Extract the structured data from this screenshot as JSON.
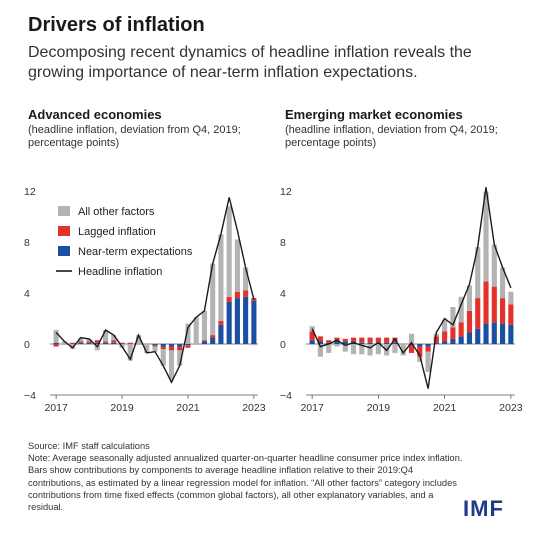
{
  "header": {
    "title": "Drivers of inflation",
    "subtitle": "Decomposing recent dynamics of headline inflation reveals the growing importance of near-term inflation expectations."
  },
  "colors": {
    "other": "#b3b3b3",
    "lagged": "#e5312b",
    "near_term": "#1a4fa5",
    "headline": "#1a1a1a"
  },
  "footer": {
    "source": "Source: IMF staff calculations",
    "note": "Note: Average seasonally adjusted annualized quarter-on-quarter headline consumer price index inflation. Bars show contributions by components to average headline inflation relative to their 2019:Q4 contributions, as estimated by a linear regression model for inflation. “All other factors” category includes contributions from time fixed effects (common global factors), all other explanatory variables, and a residual.",
    "logo": "IMF"
  },
  "chart_data": [
    {
      "type": "bar",
      "stacked": true,
      "title": "Advanced economies",
      "subtitle": "(headline inflation, deviation from Q4, 2019; percentage points)",
      "ylim": [
        -4,
        12
      ],
      "yticks": [
        -4,
        0,
        4,
        8,
        12
      ],
      "xticks": [
        "2017",
        "2019",
        "2021",
        "2023"
      ],
      "grid": false,
      "legend_position": "top-left",
      "categories": [
        "2017Q1",
        "2017Q2",
        "2017Q3",
        "2017Q4",
        "2018Q1",
        "2018Q2",
        "2018Q3",
        "2018Q4",
        "2019Q1",
        "2019Q2",
        "2019Q3",
        "2019Q4",
        "2020Q1",
        "2020Q2",
        "2020Q3",
        "2020Q4",
        "2021Q1",
        "2021Q2",
        "2021Q3",
        "2021Q4",
        "2022Q1",
        "2022Q2",
        "2022Q3",
        "2022Q4",
        "2023Q1"
      ],
      "series": [
        {
          "name": "Near-term expectations",
          "kind": "bar",
          "values": [
            0.1,
            0.0,
            0.0,
            0.1,
            0.1,
            0.1,
            0.1,
            0.1,
            0.0,
            0.0,
            0.0,
            0.0,
            -0.1,
            -0.2,
            -0.2,
            -0.2,
            -0.1,
            0.0,
            0.2,
            0.5,
            1.5,
            3.3,
            3.6,
            3.7,
            3.4
          ]
        },
        {
          "name": "Lagged inflation",
          "kind": "bar",
          "values": [
            -0.2,
            0.0,
            0.1,
            0.1,
            0.1,
            0.2,
            0.1,
            0.2,
            0.1,
            0.1,
            0.0,
            0.0,
            -0.1,
            -0.2,
            -0.3,
            -0.3,
            -0.2,
            0.0,
            0.1,
            0.2,
            0.3,
            0.4,
            0.5,
            0.5,
            0.2
          ]
        },
        {
          "name": "All other factors",
          "kind": "bar",
          "values": [
            1.0,
            0.2,
            -0.4,
            0.3,
            0.2,
            -0.5,
            0.9,
            0.4,
            -0.3,
            -1.3,
            0.7,
            -0.7,
            -0.4,
            -1.3,
            -2.3,
            -1.2,
            1.6,
            2.1,
            2.3,
            5.6,
            6.8,
            7.1,
            4.1,
            1.8,
            -0.1
          ]
        },
        {
          "name": "Headline inflation",
          "kind": "line",
          "values": [
            0.9,
            0.2,
            -0.3,
            0.5,
            0.4,
            -0.2,
            1.1,
            0.7,
            -0.2,
            -1.2,
            0.7,
            -0.7,
            -0.6,
            -1.7,
            -3.0,
            -1.7,
            1.3,
            2.1,
            2.6,
            6.3,
            8.6,
            11.5,
            8.9,
            6.0,
            3.5
          ]
        }
      ]
    },
    {
      "type": "bar",
      "stacked": true,
      "title": "Emerging market economies",
      "subtitle": "(headline inflation, deviation from Q4, 2019; percentage points)",
      "ylim": [
        -4,
        12
      ],
      "yticks": [
        -4,
        0,
        4,
        8,
        12
      ],
      "xticks": [
        "2017",
        "2019",
        "2021",
        "2023"
      ],
      "grid": false,
      "categories": [
        "2017Q1",
        "2017Q2",
        "2017Q3",
        "2017Q4",
        "2018Q1",
        "2018Q2",
        "2018Q3",
        "2018Q4",
        "2019Q1",
        "2019Q2",
        "2019Q3",
        "2019Q4",
        "2020Q1",
        "2020Q2",
        "2020Q3",
        "2020Q4",
        "2021Q1",
        "2021Q2",
        "2021Q3",
        "2021Q4",
        "2022Q1",
        "2022Q2",
        "2022Q3",
        "2022Q4",
        "2023Q1"
      ],
      "series": [
        {
          "name": "Near-term expectations",
          "kind": "bar",
          "values": [
            0.3,
            0.2,
            0.1,
            0.2,
            0.2,
            0.2,
            0.1,
            0.1,
            0.1,
            0.1,
            0.1,
            0.0,
            -0.1,
            -0.2,
            -0.2,
            0.1,
            0.2,
            0.4,
            0.6,
            0.9,
            1.2,
            1.6,
            1.7,
            1.6,
            1.5
          ]
        },
        {
          "name": "Lagged inflation",
          "kind": "bar",
          "values": [
            0.7,
            0.4,
            0.2,
            0.3,
            0.2,
            0.3,
            0.4,
            0.4,
            0.4,
            0.4,
            0.4,
            0.0,
            -0.6,
            -0.8,
            -0.4,
            0.5,
            0.8,
            0.9,
            1.1,
            1.7,
            2.4,
            3.3,
            2.8,
            2.0,
            1.6
          ]
        },
        {
          "name": "All other factors",
          "kind": "bar",
          "values": [
            0.4,
            -1.0,
            -0.7,
            -0.2,
            -0.6,
            -0.8,
            -0.8,
            -0.9,
            -0.8,
            -0.9,
            -0.7,
            -0.9,
            0.8,
            -0.4,
            -1.6,
            0.2,
            0.9,
            1.6,
            2.0,
            2.0,
            4.0,
            7.0,
            3.3,
            2.4,
            1.0
          ]
        },
        {
          "name": "Headline inflation",
          "kind": "line",
          "values": [
            1.2,
            -0.2,
            0.0,
            0.3,
            -0.1,
            0.1,
            -0.1,
            -0.3,
            0.1,
            -0.5,
            0.4,
            -0.7,
            0.1,
            -0.9,
            -3.5,
            0.9,
            2.0,
            1.5,
            3.1,
            4.7,
            7.6,
            12.3,
            7.8,
            6.0,
            4.4
          ]
        }
      ]
    }
  ],
  "legend": [
    {
      "key": "other",
      "label": "All other factors"
    },
    {
      "key": "lagged",
      "label": "Lagged inflation"
    },
    {
      "key": "near_term",
      "label": "Near-term expectations"
    },
    {
      "key": "headline",
      "label": "Headline inflation"
    }
  ]
}
